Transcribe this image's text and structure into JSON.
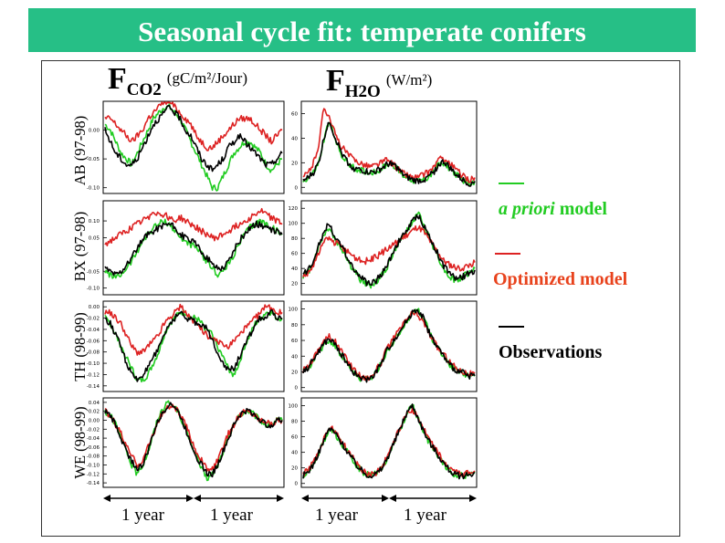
{
  "title": "Seasonal cycle fit: temperate conifers",
  "columns": [
    {
      "main": "F",
      "sub": "CO2",
      "unit": "(g",
      "unit_tail": "C/m²/Jour)"
    },
    {
      "main": "F",
      "sub": "H2O",
      "unit": "(W/m²)",
      "unit_tail": ""
    }
  ],
  "rows": [
    "AB (97-98)",
    "BX (97-98)",
    "TH (98-99)",
    "WE (98-99)"
  ],
  "legend": {
    "apriori": {
      "italic": "a priori",
      "rest": " model",
      "color": "#22cc22",
      "text_color": "#22cc22"
    },
    "optimized": {
      "text": "Optimized model",
      "color": "#dd2222",
      "text_color": "#e8421c"
    },
    "observations": {
      "text": "Observations",
      "color": "#000000",
      "text_color": "#000000"
    }
  },
  "year_labels": [
    "1 year",
    "1 year",
    "1 year",
    "1 year"
  ],
  "colors": {
    "title_bg": "#26bf86",
    "apriori": "#22cc22",
    "optimized": "#dd2222",
    "observed": "#000000"
  },
  "chart_data": [
    {
      "type": "line",
      "panel": "FCO2 AB",
      "yticks": [
        "0.00",
        "-0.05",
        "-0.10"
      ],
      "ylim": [
        -0.11,
        0.05
      ],
      "series": [
        {
          "values": [
            0.01,
            0.0,
            -0.02,
            -0.04,
            -0.05,
            -0.06,
            -0.04,
            -0.02,
            0.0,
            0.02,
            0.03,
            0.04,
            0.04,
            0.03,
            0.02,
            0.0,
            -0.02,
            -0.04,
            -0.06,
            -0.08,
            -0.1,
            -0.1,
            -0.08,
            -0.06,
            -0.04,
            -0.03,
            -0.02,
            -0.02,
            -0.03,
            -0.04,
            -0.06,
            -0.07,
            -0.06,
            -0.05
          ]
        },
        {
          "values": [
            0.02,
            0.02,
            0.01,
            0.0,
            -0.01,
            -0.02,
            -0.01,
            0.0,
            0.02,
            0.03,
            0.04,
            0.05,
            0.05,
            0.04,
            0.03,
            0.02,
            0.01,
            -0.01,
            -0.02,
            -0.03,
            -0.03,
            -0.02,
            -0.01,
            0.0,
            0.01,
            0.02,
            0.02,
            0.02,
            0.01,
            0.0,
            -0.01,
            -0.02,
            -0.01,
            0.0
          ]
        },
        {
          "values": [
            0.0,
            -0.02,
            -0.04,
            -0.05,
            -0.06,
            -0.06,
            -0.05,
            -0.03,
            -0.01,
            0.01,
            0.02,
            0.03,
            0.04,
            0.03,
            0.02,
            0.0,
            -0.01,
            -0.03,
            -0.05,
            -0.06,
            -0.07,
            -0.06,
            -0.05,
            -0.03,
            -0.02,
            -0.01,
            -0.02,
            -0.03,
            -0.04,
            -0.05,
            -0.06,
            -0.06,
            -0.05,
            -0.04
          ]
        }
      ]
    },
    {
      "type": "line",
      "panel": "FH2O AB",
      "yticks": [
        "60",
        "40",
        "20",
        "0"
      ],
      "ylim": [
        -5,
        70
      ],
      "series": [
        {
          "values": [
            5,
            8,
            12,
            20,
            38,
            55,
            40,
            30,
            22,
            18,
            15,
            14,
            13,
            12,
            13,
            15,
            18,
            20,
            15,
            10,
            8,
            6,
            5,
            6,
            8,
            12,
            18,
            20,
            16,
            12,
            8,
            5,
            3,
            5
          ]
        },
        {
          "values": [
            8,
            12,
            20,
            35,
            65,
            58,
            45,
            35,
            30,
            25,
            22,
            20,
            18,
            17,
            18,
            20,
            22,
            20,
            16,
            12,
            10,
            8,
            8,
            10,
            12,
            16,
            22,
            24,
            20,
            16,
            12,
            8,
            6,
            8
          ]
        },
        {
          "values": [
            5,
            8,
            12,
            20,
            40,
            55,
            42,
            32,
            24,
            18,
            15,
            14,
            13,
            12,
            13,
            15,
            18,
            20,
            16,
            11,
            8,
            6,
            5,
            6,
            8,
            12,
            18,
            21,
            17,
            12,
            8,
            5,
            3,
            5
          ]
        }
      ]
    },
    {
      "type": "line",
      "panel": "FCO2 BX",
      "yticks": [
        "0.10",
        "0.05",
        "-0.05",
        "-0.10"
      ],
      "ylim": [
        -0.12,
        0.16
      ],
      "series": [
        {
          "values": [
            -0.05,
            -0.06,
            -0.07,
            -0.06,
            -0.04,
            -0.02,
            0.01,
            0.04,
            0.06,
            0.08,
            0.09,
            0.1,
            0.09,
            0.07,
            0.05,
            0.04,
            0.03,
            0.02,
            0.0,
            -0.02,
            -0.04,
            -0.06,
            -0.05,
            -0.03,
            0.0,
            0.03,
            0.06,
            0.08,
            0.09,
            0.1,
            0.09,
            0.08,
            0.07,
            0.06
          ]
        },
        {
          "values": [
            0.03,
            0.04,
            0.05,
            0.06,
            0.07,
            0.08,
            0.09,
            0.1,
            0.11,
            0.13,
            0.12,
            0.12,
            0.11,
            0.1,
            0.11,
            0.1,
            0.09,
            0.08,
            0.07,
            0.06,
            0.05,
            0.05,
            0.06,
            0.07,
            0.08,
            0.09,
            0.1,
            0.11,
            0.12,
            0.13,
            0.12,
            0.11,
            0.1,
            0.09
          ]
        },
        {
          "values": [
            -0.04,
            -0.05,
            -0.06,
            -0.05,
            -0.03,
            -0.01,
            0.02,
            0.04,
            0.06,
            0.07,
            0.08,
            0.09,
            0.09,
            0.08,
            0.06,
            0.05,
            0.04,
            0.03,
            0.01,
            -0.01,
            -0.03,
            -0.04,
            -0.04,
            -0.02,
            0.01,
            0.04,
            0.06,
            0.08,
            0.09,
            0.09,
            0.08,
            0.07,
            0.07,
            0.06
          ]
        }
      ]
    },
    {
      "type": "line",
      "panel": "FH2O BX",
      "yticks": [
        "120",
        "100",
        "80",
        "60",
        "40",
        "20"
      ],
      "ylim": [
        5,
        130
      ],
      "series": [
        {
          "values": [
            30,
            35,
            50,
            70,
            85,
            95,
            80,
            70,
            60,
            45,
            35,
            25,
            20,
            18,
            22,
            30,
            40,
            55,
            70,
            80,
            90,
            100,
            115,
            100,
            85,
            70,
            55,
            40,
            30,
            25,
            25,
            30,
            35,
            40
          ]
        },
        {
          "values": [
            30,
            34,
            45,
            60,
            75,
            80,
            75,
            70,
            65,
            60,
            55,
            50,
            50,
            52,
            55,
            60,
            65,
            70,
            75,
            80,
            85,
            90,
            95,
            90,
            80,
            70,
            60,
            50,
            45,
            42,
            40,
            42,
            45,
            48
          ]
        },
        {
          "values": [
            32,
            38,
            52,
            72,
            88,
            100,
            85,
            72,
            62,
            48,
            38,
            28,
            22,
            20,
            24,
            32,
            42,
            58,
            72,
            82,
            92,
            102,
            112,
            100,
            86,
            72,
            58,
            44,
            34,
            28,
            26,
            30,
            34,
            38
          ]
        }
      ]
    },
    {
      "type": "line",
      "panel": "FCO2 TH",
      "yticks": [
        "0.00",
        "-0.02",
        "-0.04",
        "-0.06",
        "-0.08",
        "-0.10",
        "-0.12",
        "-0.14"
      ],
      "ylim": [
        -0.15,
        0.01
      ],
      "series": [
        {
          "values": [
            -0.02,
            -0.03,
            -0.05,
            -0.07,
            -0.09,
            -0.11,
            -0.13,
            -0.13,
            -0.12,
            -0.1,
            -0.08,
            -0.05,
            -0.03,
            -0.02,
            -0.01,
            -0.01,
            -0.02,
            -0.02,
            -0.03,
            -0.04,
            -0.05,
            -0.07,
            -0.09,
            -0.11,
            -0.12,
            -0.1,
            -0.07,
            -0.05,
            -0.03,
            -0.02,
            -0.01,
            -0.01,
            -0.02,
            -0.02
          ]
        },
        {
          "values": [
            -0.01,
            -0.01,
            -0.02,
            -0.03,
            -0.05,
            -0.07,
            -0.08,
            -0.08,
            -0.07,
            -0.06,
            -0.05,
            -0.03,
            -0.02,
            -0.01,
            0.0,
            -0.01,
            -0.02,
            -0.03,
            -0.04,
            -0.05,
            -0.06,
            -0.06,
            -0.07,
            -0.07,
            -0.06,
            -0.05,
            -0.04,
            -0.03,
            -0.02,
            -0.01,
            0.0,
            0.0,
            -0.01,
            -0.01
          ]
        },
        {
          "values": [
            -0.02,
            -0.03,
            -0.05,
            -0.07,
            -0.1,
            -0.12,
            -0.13,
            -0.12,
            -0.11,
            -0.09,
            -0.07,
            -0.05,
            -0.03,
            -0.02,
            -0.01,
            -0.02,
            -0.02,
            -0.03,
            -0.03,
            -0.04,
            -0.06,
            -0.08,
            -0.1,
            -0.11,
            -0.11,
            -0.09,
            -0.07,
            -0.05,
            -0.03,
            -0.02,
            -0.02,
            -0.01,
            -0.02,
            -0.02
          ]
        }
      ]
    },
    {
      "type": "line",
      "panel": "FH2O TH",
      "yticks": [
        "100",
        "80",
        "60",
        "40",
        "20",
        "0"
      ],
      "ylim": [
        -5,
        110
      ],
      "series": [
        {
          "values": [
            20,
            25,
            35,
            45,
            55,
            60,
            55,
            45,
            35,
            25,
            18,
            12,
            10,
            12,
            20,
            30,
            45,
            55,
            65,
            75,
            85,
            95,
            100,
            90,
            75,
            60,
            50,
            40,
            30,
            25,
            20,
            18,
            15,
            15
          ]
        },
        {
          "values": [
            22,
            28,
            38,
            50,
            60,
            65,
            60,
            50,
            40,
            30,
            22,
            15,
            12,
            14,
            22,
            32,
            48,
            58,
            68,
            78,
            88,
            95,
            92,
            85,
            72,
            60,
            50,
            42,
            34,
            28,
            22,
            20,
            18,
            18
          ]
        },
        {
          "values": [
            20,
            26,
            36,
            46,
            56,
            62,
            56,
            46,
            36,
            26,
            18,
            12,
            10,
            12,
            20,
            30,
            46,
            56,
            66,
            76,
            86,
            96,
            100,
            90,
            74,
            60,
            50,
            40,
            30,
            24,
            20,
            18,
            15,
            15
          ]
        }
      ]
    },
    {
      "type": "line",
      "panel": "FCO2 WE",
      "yticks": [
        "0.04",
        "0.02",
        "0.00",
        "-0.02",
        "-0.04",
        "-0.06",
        "-0.08",
        "-0.10",
        "-0.12",
        "-0.14"
      ],
      "ylim": [
        -0.15,
        0.05
      ],
      "series": [
        {
          "values": [
            0.02,
            0.01,
            -0.01,
            -0.04,
            -0.07,
            -0.1,
            -0.12,
            -0.1,
            -0.07,
            -0.03,
            0.01,
            0.03,
            0.04,
            0.03,
            0.01,
            -0.02,
            -0.05,
            -0.08,
            -0.11,
            -0.13,
            -0.12,
            -0.1,
            -0.07,
            -0.04,
            -0.01,
            0.01,
            0.02,
            0.02,
            0.01,
            0.0,
            -0.01,
            -0.01,
            0.0,
            0.0
          ]
        },
        {
          "values": [
            0.02,
            0.01,
            -0.01,
            -0.03,
            -0.06,
            -0.08,
            -0.1,
            -0.09,
            -0.06,
            -0.03,
            0.0,
            0.02,
            0.03,
            0.03,
            0.01,
            -0.01,
            -0.04,
            -0.07,
            -0.09,
            -0.11,
            -0.11,
            -0.09,
            -0.06,
            -0.03,
            -0.01,
            0.01,
            0.02,
            0.02,
            0.01,
            0.0,
            0.0,
            -0.01,
            0.0,
            0.0
          ]
        },
        {
          "values": [
            0.02,
            0.01,
            -0.01,
            -0.04,
            -0.07,
            -0.09,
            -0.11,
            -0.1,
            -0.07,
            -0.03,
            0.0,
            0.02,
            0.04,
            0.03,
            0.01,
            -0.02,
            -0.05,
            -0.08,
            -0.1,
            -0.12,
            -0.12,
            -0.1,
            -0.07,
            -0.04,
            -0.01,
            0.01,
            0.02,
            0.02,
            0.01,
            0.0,
            -0.01,
            -0.01,
            0.0,
            0.0
          ]
        }
      ]
    },
    {
      "type": "line",
      "panel": "FH2O WE",
      "yticks": [
        "100",
        "80",
        "60",
        "40",
        "20",
        "0"
      ],
      "ylim": [
        -5,
        110
      ],
      "series": [
        {
          "values": [
            10,
            15,
            25,
            40,
            55,
            70,
            65,
            55,
            45,
            35,
            25,
            18,
            12,
            10,
            12,
            18,
            30,
            45,
            60,
            75,
            90,
            100,
            85,
            70,
            55,
            45,
            35,
            25,
            18,
            12,
            10,
            10,
            12,
            15
          ]
        },
        {
          "values": [
            12,
            18,
            28,
            42,
            58,
            72,
            68,
            58,
            48,
            38,
            28,
            20,
            14,
            12,
            14,
            20,
            32,
            48,
            62,
            78,
            92,
            95,
            85,
            72,
            58,
            48,
            38,
            28,
            20,
            15,
            12,
            12,
            14,
            16
          ]
        },
        {
          "values": [
            10,
            15,
            25,
            40,
            55,
            70,
            66,
            56,
            46,
            36,
            26,
            18,
            12,
            10,
            12,
            18,
            30,
            45,
            60,
            76,
            92,
            100,
            86,
            70,
            56,
            46,
            36,
            26,
            18,
            12,
            10,
            10,
            12,
            14
          ]
        }
      ]
    }
  ]
}
